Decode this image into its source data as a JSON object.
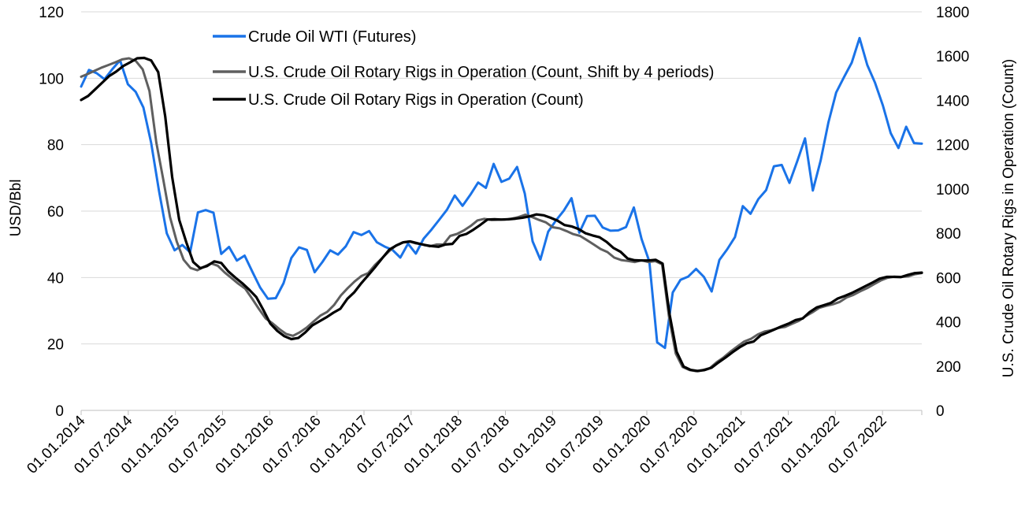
{
  "chart_data": {
    "type": "line",
    "xlabel": "",
    "ylabel": "USD/Bbl",
    "y2label": "U.S. Crude Oil Rotary Rigs in Operation (Count)",
    "ylim": [
      0,
      120
    ],
    "y2lim": [
      0,
      1800
    ],
    "yticks": [
      "0",
      "20",
      "40",
      "60",
      "80",
      "100",
      "120"
    ],
    "y2ticks": [
      "0",
      "200",
      "400",
      "600",
      "800",
      "1000",
      "1200",
      "1400",
      "1600",
      "1800"
    ],
    "x_tick_labels": [
      "01.01.2014",
      "01.07.2014",
      "01.01.2015",
      "01.07.2015",
      "01.01.2016",
      "01.07.2016",
      "01.01.2017",
      "01.07.2017",
      "01.01.2018",
      "01.07.2018",
      "01.01.2019",
      "01.07.2019",
      "01.01.2020",
      "01.07.2020",
      "01.01.2021",
      "01.07.2021",
      "01.01.2022",
      "01.07.2022"
    ],
    "x_start": "2014-01",
    "x_end": "2022-12",
    "grid": true,
    "legend_position": "top",
    "series": [
      {
        "name": "Crude Oil WTI (Futures)",
        "color": "#1a73e8",
        "axis": "left",
        "values": [
          97.5,
          102.5,
          101.5,
          99.7,
          102.7,
          105.4,
          98.2,
          95.9,
          91.2,
          80.5,
          66.1,
          53.3,
          48.2,
          49.8,
          47.6,
          59.6,
          60.3,
          59.5,
          47.1,
          49.2,
          45.1,
          46.6,
          41.7,
          37.0,
          33.6,
          33.8,
          38.3,
          45.9,
          49.1,
          48.3,
          41.6,
          44.7,
          48.2,
          46.9,
          49.4,
          53.7,
          52.8,
          54.0,
          50.6,
          49.3,
          48.3,
          46.0,
          50.2,
          47.2,
          51.7,
          54.4,
          57.4,
          60.4,
          64.7,
          61.6,
          64.9,
          68.6,
          67.0,
          74.2,
          68.8,
          69.8,
          73.3,
          65.3,
          50.9,
          45.4,
          53.8,
          57.2,
          60.1,
          63.9,
          53.5,
          58.5,
          58.6,
          55.1,
          54.1,
          54.2,
          55.2,
          61.1,
          51.6,
          44.8,
          20.5,
          18.8,
          35.5,
          39.3,
          40.3,
          42.6,
          40.2,
          35.8,
          45.3,
          48.5,
          52.2,
          61.5,
          59.2,
          63.6,
          66.3,
          73.5,
          73.9,
          68.5,
          75.0,
          81.9,
          66.2,
          75.2,
          86.6,
          95.7,
          100.3,
          104.7,
          112.1,
          104.0,
          98.6,
          91.8,
          83.5,
          79.0,
          85.4,
          80.5,
          80.3
        ]
      },
      {
        "name": "U.S. Crude Oil Rotary Rigs in Operation (Count, Shift by 4 periods)",
        "color": "#5f5f5f",
        "axis": "right",
        "values": [
          1507,
          1520,
          1534,
          1548,
          1560,
          1572,
          1585,
          1590,
          1578,
          1540,
          1442,
          1210,
          1045,
          873,
          762,
          680,
          643,
          633,
          649,
          664,
          653,
          623,
          598,
          572,
          550,
          505,
          459,
          415,
          393,
          367,
          345,
          337,
          353,
          374,
          401,
          428,
          445,
          476,
          519,
          552,
          582,
          607,
          620,
          657,
          687,
          717,
          743,
          758,
          763,
          754,
          750,
          741,
          749,
          749,
          788,
          797,
          813,
          833,
          858,
          865,
          860,
          861,
          862,
          866,
          873,
          884,
          873,
          860,
          849,
          827,
          822,
          810,
          796,
          788,
          769,
          749,
          729,
          715,
          690,
          679,
          675,
          670,
          678,
          670,
          674,
          660,
          426,
          257,
          196,
          182,
          177,
          183,
          191,
          218,
          239,
          265,
          288,
          311,
          323,
          343,
          356,
          362,
          372,
          377,
          391,
          404,
          425,
          443,
          463,
          472,
          479,
          490,
          510,
          522,
          538,
          552,
          570,
          587,
          599,
          604,
          603,
          605,
          615,
          620
        ]
      },
      {
        "name": "U.S. Crude Oil Rotary Rigs in Operation (Count)",
        "color": "#000000",
        "axis": "right",
        "values": [
          1402,
          1420,
          1450,
          1480,
          1510,
          1530,
          1555,
          1572,
          1590,
          1592,
          1580,
          1528,
          1328,
          1052,
          860,
          760,
          670,
          642,
          652,
          673,
          666,
          628,
          600,
          574,
          545,
          512,
          454,
          392,
          359,
          335,
          322,
          327,
          352,
          384,
          402,
          420,
          441,
          459,
          504,
          534,
          575,
          611,
          648,
          688,
          726,
          745,
          759,
          763,
          755,
          747,
          742,
          739,
          749,
          752,
          788,
          797,
          816,
          838,
          862,
          863,
          862,
          863,
          866,
          870,
          876,
          885,
          881,
          870,
          857,
          837,
          831,
          819,
          800,
          790,
          782,
          761,
          733,
          716,
          686,
          678,
          677,
          677,
          680,
          663,
          433,
          265,
          198,
          183,
          178,
          182,
          193,
          217,
          239,
          263,
          285,
          303,
          311,
          339,
          352,
          366,
          380,
          392,
          408,
          415,
          444,
          465,
          475,
          485,
          505,
          517,
          530,
          546,
          562,
          578,
          595,
          603,
          603,
          602,
          612,
          620,
          622
        ]
      }
    ]
  }
}
